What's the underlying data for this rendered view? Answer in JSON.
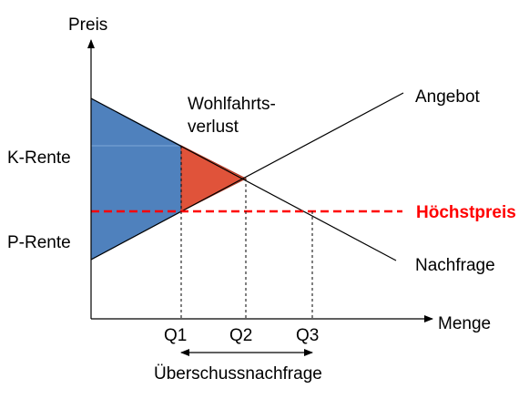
{
  "labels": {
    "y_axis": "Preis",
    "x_axis": "Menge",
    "supply": "Angebot",
    "demand": "Nachfrage",
    "price_ceiling": "Höchstpreis",
    "consumer_surplus": "K-Rente",
    "producer_surplus": "P-Rente",
    "deadweight_loss_line1": "Wohlfahrts-",
    "deadweight_loss_line2": "verlust",
    "q1": "Q1",
    "q2": "Q2",
    "q3": "Q3",
    "excess_demand": "Überschussnachfrage"
  },
  "colors": {
    "surplus_fill": "#4f81bd",
    "deadweight_fill": "#e0533a",
    "price_ceiling": "#ff0000",
    "lines": "#000000"
  }
}
